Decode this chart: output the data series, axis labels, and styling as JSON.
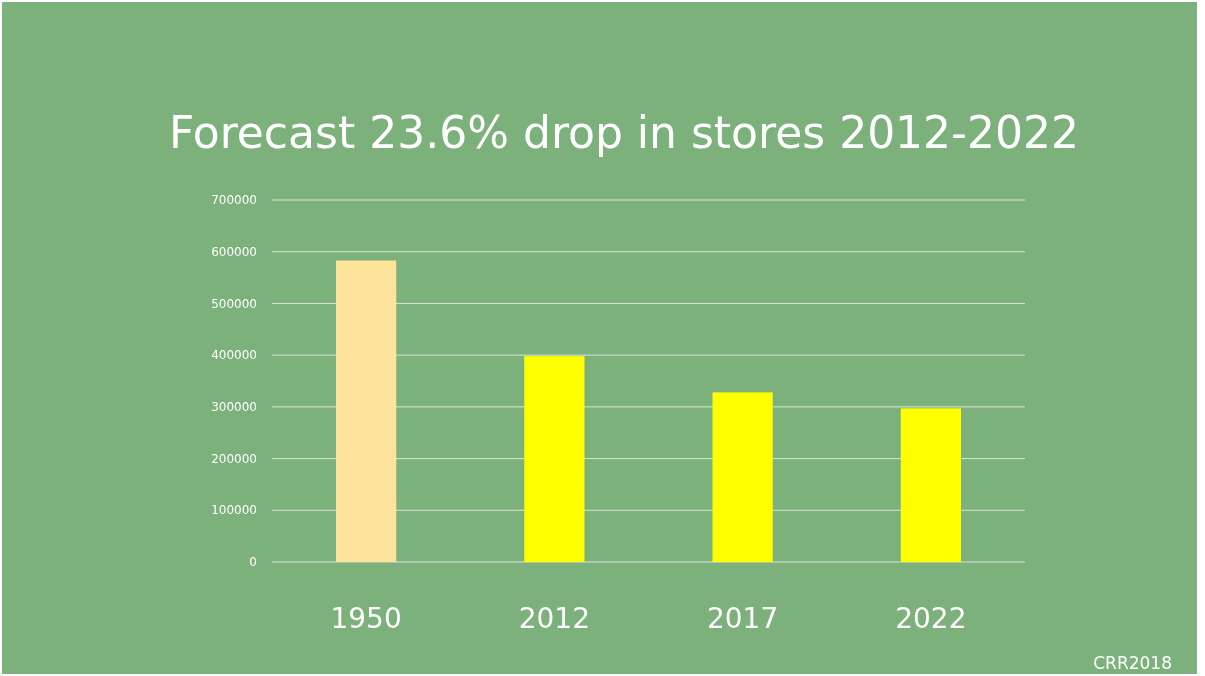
{
  "chart_data": {
    "type": "bar",
    "title": "Forecast 23.6% drop in stores 2012-2022",
    "categories": [
      "1950",
      "2012",
      "2017",
      "2022"
    ],
    "values": [
      583000,
      398000,
      328000,
      297000
    ],
    "colors": [
      "#fde49a",
      "#ffff00",
      "#ffff00",
      "#ffff00"
    ],
    "ylim": [
      0,
      700000
    ],
    "yticks": [
      0,
      100000,
      200000,
      300000,
      400000,
      500000,
      600000,
      700000
    ],
    "grid": "y",
    "annotations": [
      "CRR2018"
    ]
  }
}
